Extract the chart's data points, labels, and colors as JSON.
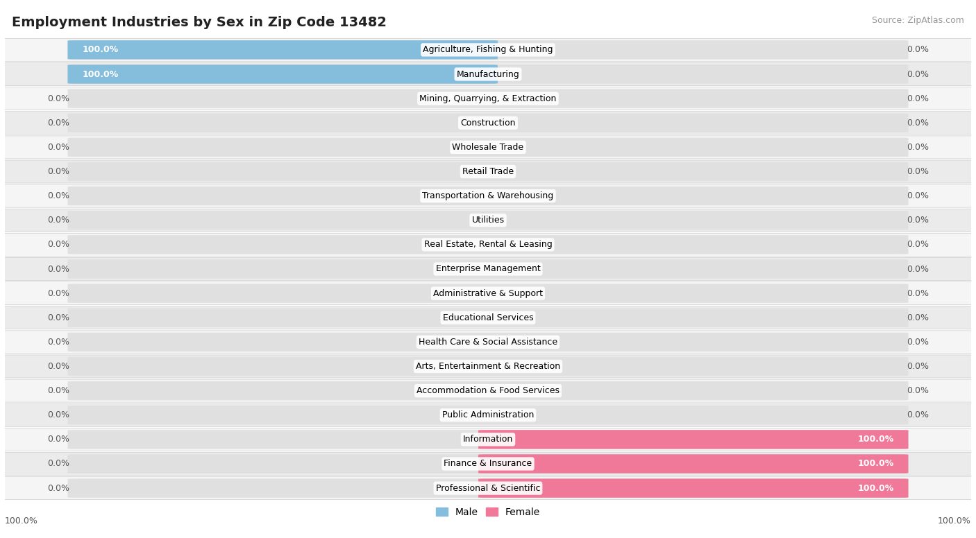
{
  "title": "Employment Industries by Sex in Zip Code 13482",
  "source": "Source: ZipAtlas.com",
  "categories": [
    "Agriculture, Fishing & Hunting",
    "Manufacturing",
    "Mining, Quarrying, & Extraction",
    "Construction",
    "Wholesale Trade",
    "Retail Trade",
    "Transportation & Warehousing",
    "Utilities",
    "Real Estate, Rental & Leasing",
    "Enterprise Management",
    "Administrative & Support",
    "Educational Services",
    "Health Care & Social Assistance",
    "Arts, Entertainment & Recreation",
    "Accommodation & Food Services",
    "Public Administration",
    "Information",
    "Finance & Insurance",
    "Professional & Scientific"
  ],
  "male_pct": [
    100.0,
    100.0,
    0.0,
    0.0,
    0.0,
    0.0,
    0.0,
    0.0,
    0.0,
    0.0,
    0.0,
    0.0,
    0.0,
    0.0,
    0.0,
    0.0,
    0.0,
    0.0,
    0.0
  ],
  "female_pct": [
    0.0,
    0.0,
    0.0,
    0.0,
    0.0,
    0.0,
    0.0,
    0.0,
    0.0,
    0.0,
    0.0,
    0.0,
    0.0,
    0.0,
    0.0,
    0.0,
    100.0,
    100.0,
    100.0
  ],
  "male_color": "#85bedd",
  "female_color": "#f07898",
  "row_bg_even": "#f5f5f5",
  "row_bg_odd": "#ebebeb",
  "bar_bg_color": "#e0e0e0",
  "title_fontsize": 14,
  "label_fontsize": 9,
  "category_fontsize": 9,
  "legend_fontsize": 10,
  "source_fontsize": 9
}
